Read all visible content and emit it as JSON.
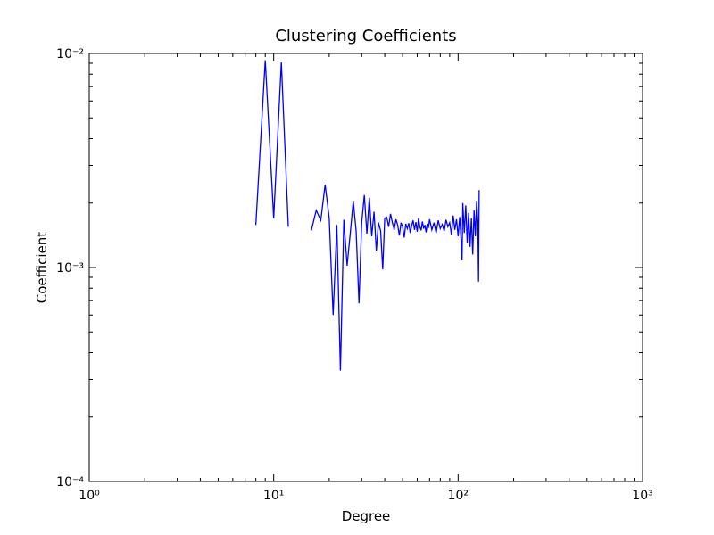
{
  "chart_data": {
    "type": "line",
    "title": "Clustering Coefficients",
    "x_label": "Degree",
    "y_label": "Coefficient",
    "x": [
      8,
      9,
      10,
      11,
      12,
      13,
      14,
      15,
      16,
      17,
      18,
      19,
      20,
      21,
      22,
      23,
      24,
      25,
      26,
      27,
      28,
      29,
      30,
      31,
      32,
      33,
      34,
      35,
      36,
      37,
      38,
      39,
      40,
      41,
      42,
      43,
      44,
      45,
      46,
      47,
      48,
      49,
      50,
      51,
      52,
      53,
      54,
      55,
      56,
      57,
      58,
      59,
      60,
      61,
      62,
      63,
      64,
      65,
      66,
      67,
      68,
      69,
      70,
      72,
      74,
      76,
      78,
      80,
      82,
      84,
      86,
      88,
      90,
      92,
      94,
      96,
      98,
      100,
      102,
      104,
      105,
      106,
      108,
      110,
      112,
      114,
      116,
      118,
      120,
      122,
      124,
      126,
      128,
      129,
      130
    ],
    "values": [
      0.00158,
      0.0093,
      0.0017,
      0.0091,
      0.00155,
      null,
      null,
      null,
      0.00149,
      0.00185,
      0.00166,
      0.00244,
      0.0017,
      0.0006,
      0.00158,
      0.00033,
      0.00167,
      0.00102,
      0.00144,
      0.00205,
      0.00147,
      0.00068,
      0.00162,
      0.00218,
      0.00144,
      0.00212,
      0.0014,
      0.00182,
      0.0012,
      0.00162,
      0.00148,
      0.00098,
      0.0017,
      0.00172,
      0.00155,
      0.00178,
      0.00162,
      0.0015,
      0.00168,
      0.00158,
      0.00141,
      0.00162,
      0.00155,
      0.00138,
      0.0016,
      0.00152,
      0.00161,
      0.00145,
      0.00157,
      0.00166,
      0.0015,
      0.00163,
      0.00147,
      0.0017,
      0.00155,
      0.00149,
      0.00164,
      0.00152,
      0.00158,
      0.00146,
      0.0016,
      0.00153,
      0.00168,
      0.0015,
      0.00162,
      0.00145,
      0.00166,
      0.00152,
      0.00159,
      0.00148,
      0.00167,
      0.00155,
      0.00162,
      0.00142,
      0.00175,
      0.0015,
      0.00168,
      0.0014,
      0.00172,
      0.0013,
      0.00108,
      0.002,
      0.00145,
      0.00195,
      0.0013,
      0.0018,
      0.00125,
      0.0017,
      0.00115,
      0.00185,
      0.0014,
      0.00205,
      0.0016,
      0.00086,
      0.0023
    ],
    "color": "#0000ff",
    "x_log": true,
    "y_log": true,
    "xlim": [
      1,
      1000
    ],
    "ylim": [
      0.0001,
      0.01
    ],
    "xticks": [
      {
        "value": 1,
        "label": "10⁰"
      },
      {
        "value": 10,
        "label": "10¹"
      },
      {
        "value": 100,
        "label": "10²"
      },
      {
        "value": 1000,
        "label": "10³"
      }
    ],
    "yticks": [
      {
        "value": 0.0001,
        "label": "10⁻⁴"
      },
      {
        "value": 0.001,
        "label": "10⁻³"
      },
      {
        "value": 0.01,
        "label": "10⁻²"
      }
    ]
  }
}
